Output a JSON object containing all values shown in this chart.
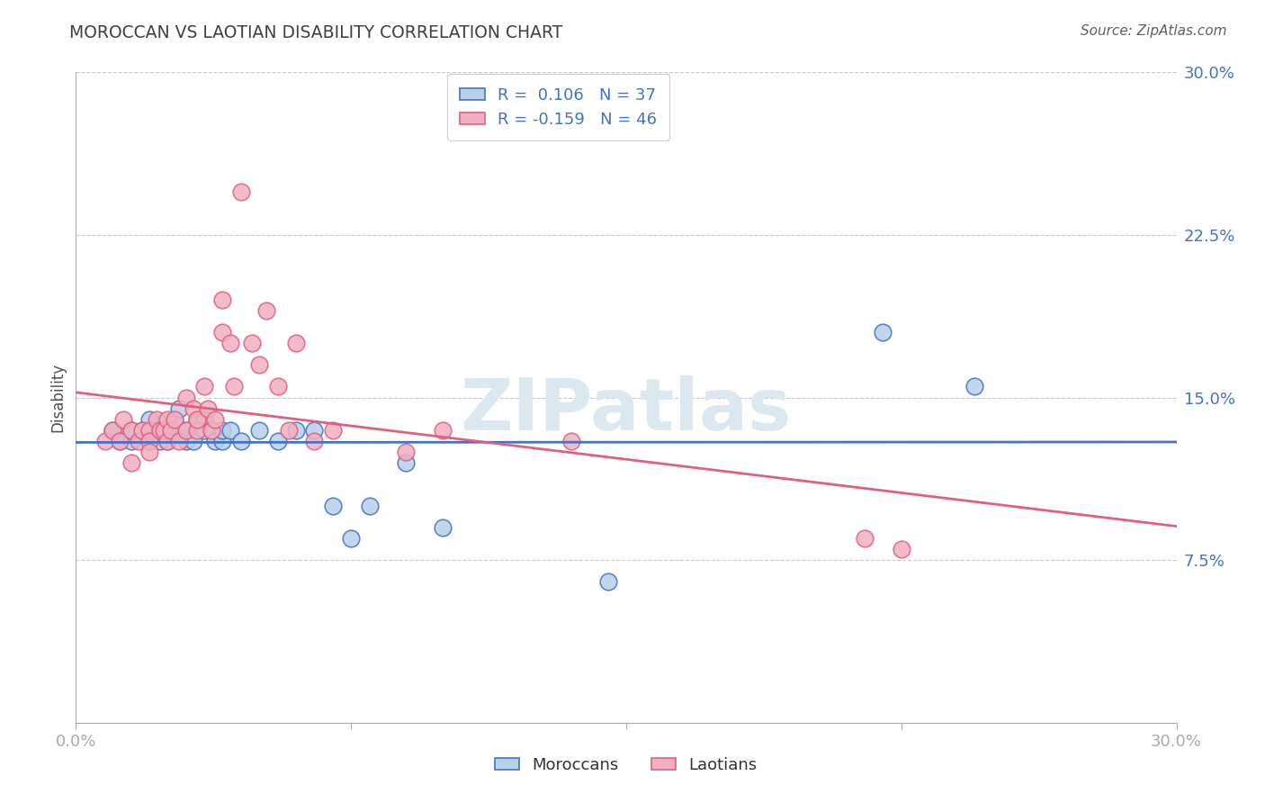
{
  "title": "MOROCCAN VS LAOTIAN DISABILITY CORRELATION CHART",
  "source": "Source: ZipAtlas.com",
  "ylabel": "Disability",
  "xlim": [
    0.0,
    0.3
  ],
  "ylim": [
    0.0,
    0.3
  ],
  "yticks": [
    0.075,
    0.15,
    0.225,
    0.3
  ],
  "ytick_labels": [
    "7.5%",
    "15.0%",
    "22.5%",
    "30.0%"
  ],
  "xtick_labels": [
    "0.0%",
    "30.0%"
  ],
  "grid_color": "#c8c8c8",
  "background_color": "#ffffff",
  "moroccan_face_color": "#b8d0e8",
  "moroccan_edge_color": "#4472c4",
  "laotian_face_color": "#f0b0c0",
  "laotian_edge_color": "#e06080",
  "moroccan_line_color": "#4472c4",
  "laotian_line_color": "#e06080",
  "watermark_color": "#dce8f0",
  "legend_text_color": "#4472c4",
  "axis_label_color": "#4472c4",
  "title_color": "#404040",
  "source_color": "#606060",
  "legend_R_moroccan": "R =  0.106",
  "legend_N_moroccan": "N = 37",
  "legend_R_laotian": "R = -0.159",
  "legend_N_laotian": "N = 46",
  "moroccan_x": [
    0.01,
    0.012,
    0.015,
    0.015,
    0.018,
    0.02,
    0.02,
    0.022,
    0.023,
    0.025,
    0.025,
    0.027,
    0.028,
    0.03,
    0.03,
    0.032,
    0.033,
    0.035,
    0.035,
    0.037,
    0.038,
    0.04,
    0.04,
    0.042,
    0.045,
    0.05,
    0.055,
    0.06,
    0.065,
    0.07,
    0.075,
    0.08,
    0.09,
    0.1,
    0.145,
    0.22,
    0.245
  ],
  "moroccan_y": [
    0.135,
    0.13,
    0.13,
    0.135,
    0.135,
    0.13,
    0.14,
    0.135,
    0.13,
    0.13,
    0.135,
    0.14,
    0.145,
    0.13,
    0.135,
    0.13,
    0.14,
    0.135,
    0.14,
    0.135,
    0.13,
    0.13,
    0.135,
    0.135,
    0.13,
    0.135,
    0.13,
    0.135,
    0.135,
    0.1,
    0.085,
    0.1,
    0.12,
    0.09,
    0.065,
    0.18,
    0.155
  ],
  "laotian_x": [
    0.008,
    0.01,
    0.012,
    0.013,
    0.015,
    0.015,
    0.017,
    0.018,
    0.02,
    0.02,
    0.02,
    0.022,
    0.023,
    0.024,
    0.025,
    0.025,
    0.026,
    0.027,
    0.028,
    0.03,
    0.03,
    0.032,
    0.033,
    0.033,
    0.035,
    0.036,
    0.037,
    0.038,
    0.04,
    0.04,
    0.042,
    0.043,
    0.045,
    0.048,
    0.05,
    0.052,
    0.055,
    0.058,
    0.06,
    0.065,
    0.07,
    0.09,
    0.1,
    0.135,
    0.215,
    0.225
  ],
  "laotian_y": [
    0.13,
    0.135,
    0.13,
    0.14,
    0.12,
    0.135,
    0.13,
    0.135,
    0.135,
    0.13,
    0.125,
    0.14,
    0.135,
    0.135,
    0.14,
    0.13,
    0.135,
    0.14,
    0.13,
    0.15,
    0.135,
    0.145,
    0.135,
    0.14,
    0.155,
    0.145,
    0.135,
    0.14,
    0.18,
    0.195,
    0.175,
    0.155,
    0.245,
    0.175,
    0.165,
    0.19,
    0.155,
    0.135,
    0.175,
    0.13,
    0.135,
    0.125,
    0.135,
    0.13,
    0.085,
    0.08
  ]
}
